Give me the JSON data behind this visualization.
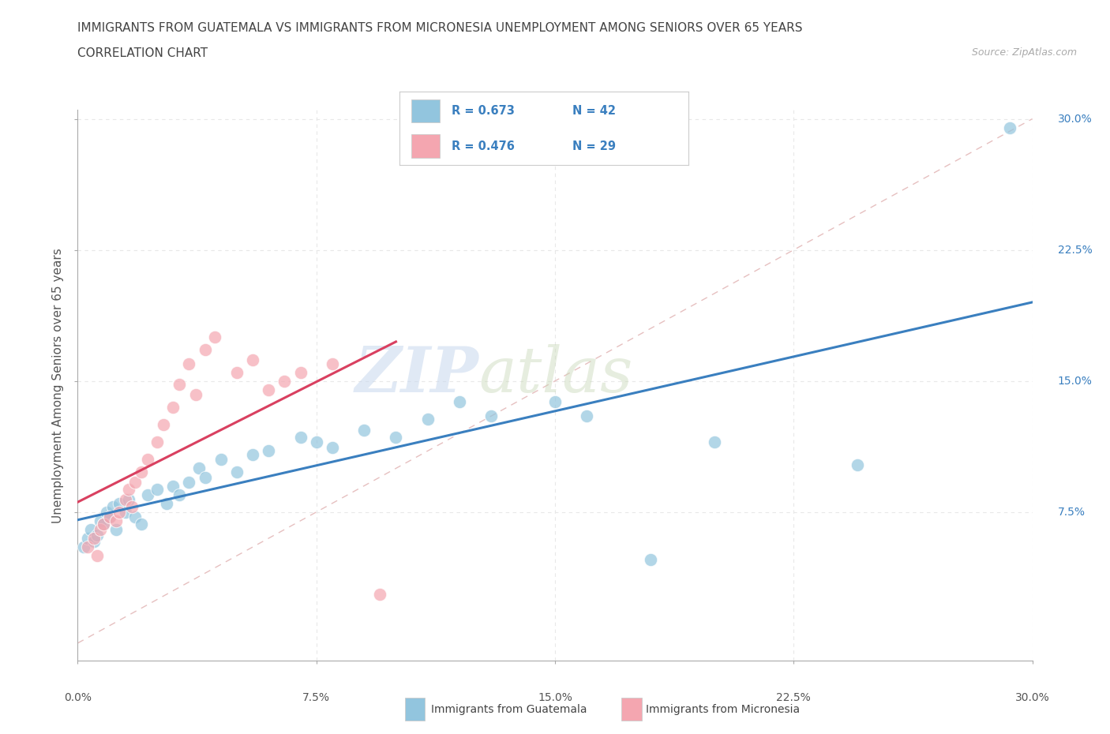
{
  "title_line1": "IMMIGRANTS FROM GUATEMALA VS IMMIGRANTS FROM MICRONESIA UNEMPLOYMENT AMONG SENIORS OVER 65 YEARS",
  "title_line2": "CORRELATION CHART",
  "source_text": "Source: ZipAtlas.com",
  "ylabel": "Unemployment Among Seniors over 65 years",
  "xlim": [
    0.0,
    0.3
  ],
  "ylim": [
    -0.01,
    0.305
  ],
  "xtick_vals": [
    0.0,
    0.075,
    0.15,
    0.225,
    0.3
  ],
  "xtick_labels": [
    "0.0%",
    "7.5%",
    "15.0%",
    "22.5%",
    "30.0%"
  ],
  "ytick_vals": [
    0.075,
    0.15,
    0.225,
    0.3
  ],
  "ytick_labels": [
    "7.5%",
    "15.0%",
    "22.5%",
    "30.0%"
  ],
  "guatemala_color": "#92c5de",
  "micronesia_color": "#f4a6b0",
  "guatemala_scatter": [
    [
      0.002,
      0.055
    ],
    [
      0.003,
      0.06
    ],
    [
      0.004,
      0.065
    ],
    [
      0.005,
      0.058
    ],
    [
      0.006,
      0.062
    ],
    [
      0.007,
      0.07
    ],
    [
      0.008,
      0.068
    ],
    [
      0.009,
      0.075
    ],
    [
      0.01,
      0.072
    ],
    [
      0.011,
      0.078
    ],
    [
      0.012,
      0.065
    ],
    [
      0.013,
      0.08
    ],
    [
      0.015,
      0.075
    ],
    [
      0.016,
      0.082
    ],
    [
      0.018,
      0.072
    ],
    [
      0.02,
      0.068
    ],
    [
      0.022,
      0.085
    ],
    [
      0.025,
      0.088
    ],
    [
      0.028,
      0.08
    ],
    [
      0.03,
      0.09
    ],
    [
      0.032,
      0.085
    ],
    [
      0.035,
      0.092
    ],
    [
      0.038,
      0.1
    ],
    [
      0.04,
      0.095
    ],
    [
      0.045,
      0.105
    ],
    [
      0.05,
      0.098
    ],
    [
      0.055,
      0.108
    ],
    [
      0.06,
      0.11
    ],
    [
      0.07,
      0.118
    ],
    [
      0.075,
      0.115
    ],
    [
      0.08,
      0.112
    ],
    [
      0.09,
      0.122
    ],
    [
      0.1,
      0.118
    ],
    [
      0.11,
      0.128
    ],
    [
      0.12,
      0.138
    ],
    [
      0.13,
      0.13
    ],
    [
      0.15,
      0.138
    ],
    [
      0.16,
      0.13
    ],
    [
      0.18,
      0.048
    ],
    [
      0.2,
      0.115
    ],
    [
      0.245,
      0.102
    ],
    [
      0.293,
      0.295
    ]
  ],
  "micronesia_scatter": [
    [
      0.003,
      0.055
    ],
    [
      0.005,
      0.06
    ],
    [
      0.006,
      0.05
    ],
    [
      0.007,
      0.065
    ],
    [
      0.008,
      0.068
    ],
    [
      0.01,
      0.072
    ],
    [
      0.012,
      0.07
    ],
    [
      0.013,
      0.075
    ],
    [
      0.015,
      0.082
    ],
    [
      0.016,
      0.088
    ],
    [
      0.017,
      0.078
    ],
    [
      0.018,
      0.092
    ],
    [
      0.02,
      0.098
    ],
    [
      0.022,
      0.105
    ],
    [
      0.025,
      0.115
    ],
    [
      0.027,
      0.125
    ],
    [
      0.03,
      0.135
    ],
    [
      0.032,
      0.148
    ],
    [
      0.035,
      0.16
    ],
    [
      0.037,
      0.142
    ],
    [
      0.04,
      0.168
    ],
    [
      0.043,
      0.175
    ],
    [
      0.05,
      0.155
    ],
    [
      0.055,
      0.162
    ],
    [
      0.06,
      0.145
    ],
    [
      0.065,
      0.15
    ],
    [
      0.07,
      0.155
    ],
    [
      0.08,
      0.16
    ],
    [
      0.095,
      0.028
    ]
  ],
  "R_guatemala": 0.673,
  "N_guatemala": 42,
  "R_micronesia": 0.476,
  "N_micronesia": 29,
  "legend_label_guatemala": "Immigrants from Guatemala",
  "legend_label_micronesia": "Immigrants from Micronesia",
  "watermark_zip": "ZIP",
  "watermark_atlas": "atlas",
  "background_color": "#ffffff",
  "grid_color": "#e8e8e8",
  "diagonal_color": "#e0b0b0",
  "trend_guatemala_color": "#3a7fbf",
  "trend_micronesia_color": "#d94060",
  "axis_label_color": "#555555",
  "tick_label_color_x": "#555555",
  "tick_label_color_y": "#3a7fbf",
  "title_color": "#444444",
  "source_color": "#aaaaaa",
  "legend_text_color": "#3a7fbf"
}
